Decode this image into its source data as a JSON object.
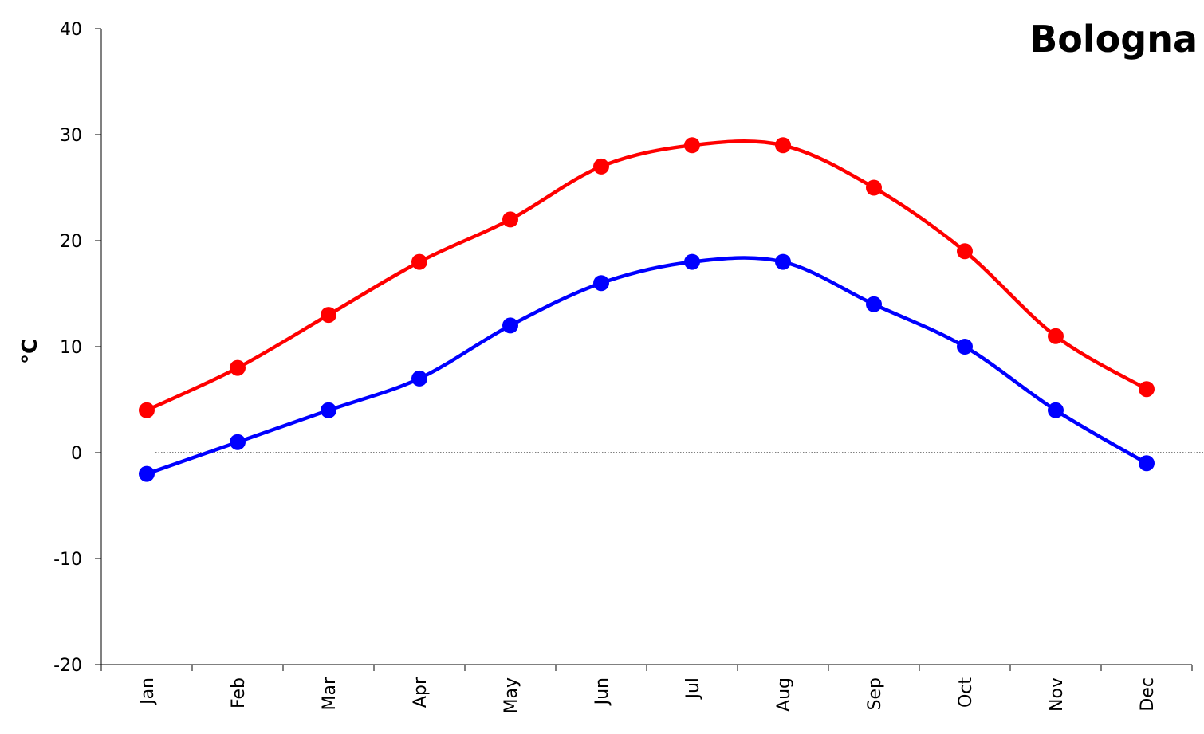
{
  "chart_data": {
    "type": "line",
    "title": "Bologna",
    "xlabel": "",
    "ylabel": "°C",
    "categories": [
      "Jan",
      "Feb",
      "Mar",
      "Apr",
      "May",
      "Jun",
      "Jul",
      "Aug",
      "Sep",
      "Oct",
      "Nov",
      "Dec"
    ],
    "ylim": [
      -20,
      40
    ],
    "yticks": [
      -20,
      -10,
      0,
      10,
      20,
      30,
      40
    ],
    "grid": false,
    "zero_line": true,
    "series": [
      {
        "color": "#ff0000",
        "values": [
          4,
          8,
          13,
          18,
          22,
          27,
          29,
          29,
          25,
          19,
          11,
          6
        ]
      },
      {
        "color": "#0000ff",
        "values": [
          -2,
          1,
          4,
          7,
          12,
          16,
          18,
          18,
          14,
          10,
          4,
          -1
        ]
      }
    ]
  }
}
